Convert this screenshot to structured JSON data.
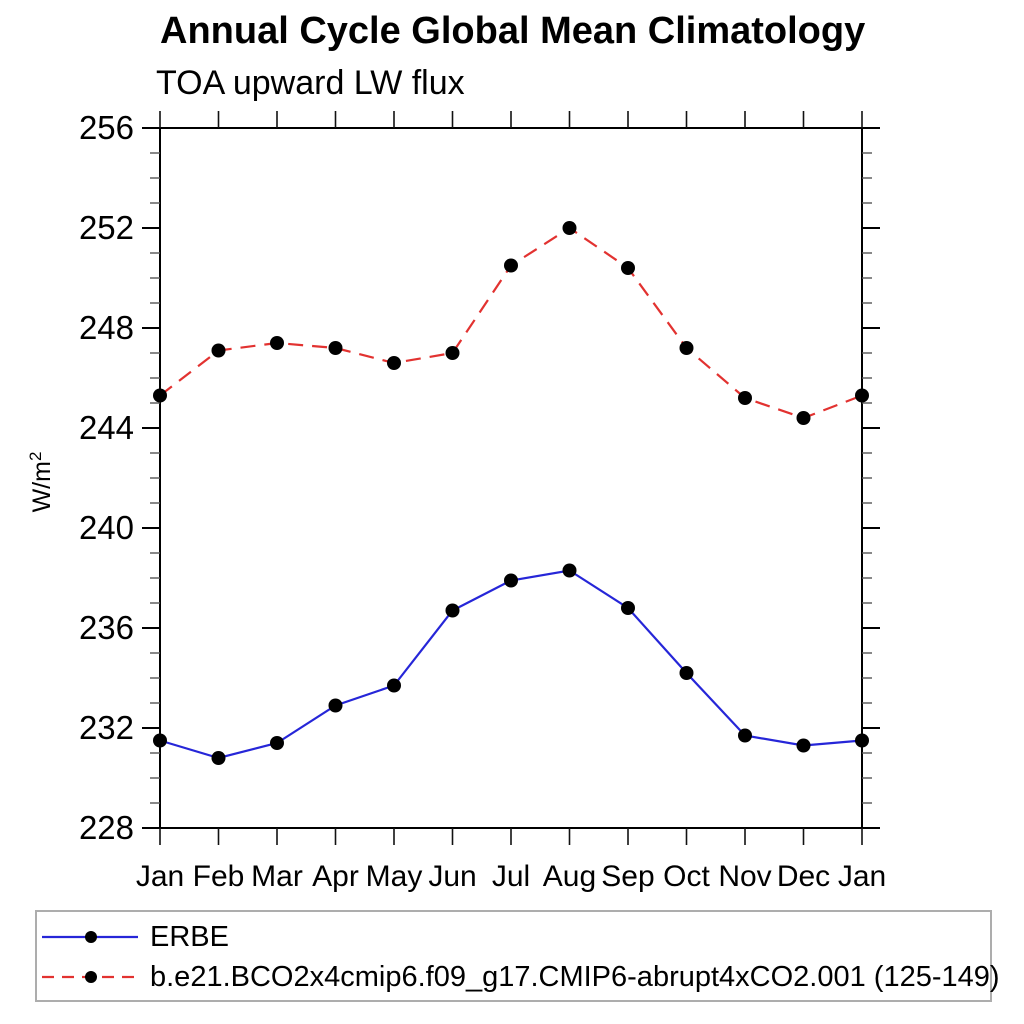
{
  "header": {
    "title": "Annual Cycle Global Mean Climatology",
    "subtitle": "TOA upward LW flux"
  },
  "chart_data": {
    "type": "line",
    "title": "Annual Cycle Global Mean Climatology",
    "subtitle": "TOA upward LW flux",
    "ylabel": "W/m²",
    "ylabel_base": "W/m",
    "ylabel_exp": "2",
    "categories": [
      "Jan",
      "Feb",
      "Mar",
      "Apr",
      "May",
      "Jun",
      "Jul",
      "Aug",
      "Sep",
      "Oct",
      "Nov",
      "Dec",
      "Jan"
    ],
    "ylim": [
      228,
      256
    ],
    "y_major_step": 4,
    "y_minor_step": 1,
    "y_tick_labels": [
      "228",
      "232",
      "236",
      "240",
      "244",
      "248",
      "252",
      "256"
    ],
    "grid": false,
    "legend_position": "bottom",
    "series": [
      {
        "name": "ERBE",
        "color": "#2626d8",
        "style": "solid",
        "marker": "circle",
        "marker_color": "#000000",
        "values": [
          231.5,
          230.8,
          231.4,
          232.9,
          233.7,
          236.7,
          237.9,
          238.3,
          236.8,
          234.2,
          231.7,
          231.3,
          231.5
        ]
      },
      {
        "name": "b.e21.BCO2x4cmip6.f09_g17.CMIP6-abrupt4xCO2.001 (125-149)",
        "color": "#e23230",
        "style": "dashed",
        "marker": "circle",
        "marker_color": "#000000",
        "values": [
          245.3,
          247.1,
          247.4,
          247.2,
          246.6,
          247.0,
          250.5,
          252.0,
          250.4,
          247.2,
          245.2,
          244.4,
          245.3
        ]
      }
    ],
    "axis_color": "#000000",
    "minor_tick_color": "#555555",
    "legend_border_color": "#adadad"
  }
}
